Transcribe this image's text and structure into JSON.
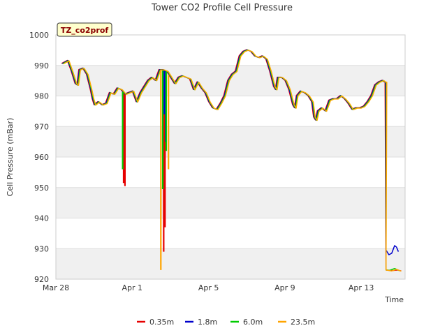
{
  "chart_data": {
    "type": "line",
    "title": "Tower CO2 Profile Cell Pressure",
    "xlabel": "Time",
    "ylabel": "Cell Pressure (mBar)",
    "site_tag": "TZ_co2prof",
    "x_unit": "days since Mar 28",
    "xlim": [
      0,
      18.3
    ],
    "ylim": [
      920,
      1000
    ],
    "yticks": [
      920,
      930,
      940,
      950,
      960,
      970,
      980,
      990,
      1000
    ],
    "xticks": [
      {
        "value": 0,
        "label": "Mar 28"
      },
      {
        "value": 4,
        "label": "Apr 1"
      },
      {
        "value": 8,
        "label": "Apr 5"
      },
      {
        "value": 12,
        "label": "Apr 9"
      },
      {
        "value": 16,
        "label": "Apr 13"
      }
    ],
    "base_profile": [
      [
        0.3,
        990.5
      ],
      [
        0.6,
        991.5
      ],
      [
        0.8,
        988
      ],
      [
        1.0,
        984
      ],
      [
        1.1,
        983.5
      ],
      [
        1.2,
        988.5
      ],
      [
        1.4,
        989
      ],
      [
        1.6,
        987
      ],
      [
        1.8,
        982
      ],
      [
        1.9,
        979
      ],
      [
        2.0,
        977
      ],
      [
        2.2,
        978
      ],
      [
        2.4,
        977
      ],
      [
        2.6,
        977.5
      ],
      [
        2.8,
        981
      ],
      [
        3.0,
        980.5
      ],
      [
        3.2,
        982.5
      ],
      [
        3.4,
        982
      ],
      [
        3.6,
        980.5
      ],
      [
        3.8,
        981
      ],
      [
        4.0,
        981.5
      ],
      [
        4.2,
        978
      ],
      [
        4.4,
        981
      ],
      [
        4.6,
        983
      ],
      [
        4.8,
        985
      ],
      [
        5.0,
        986
      ],
      [
        5.2,
        985
      ],
      [
        5.4,
        988.5
      ],
      [
        5.6,
        988.5
      ],
      [
        5.8,
        988
      ],
      [
        6.0,
        986
      ],
      [
        6.2,
        984
      ],
      [
        6.4,
        986
      ],
      [
        6.6,
        986.5
      ],
      [
        6.8,
        986
      ],
      [
        7.0,
        985.5
      ],
      [
        7.2,
        982
      ],
      [
        7.4,
        984.5
      ],
      [
        7.6,
        982.5
      ],
      [
        7.8,
        981
      ],
      [
        8.0,
        978
      ],
      [
        8.2,
        976
      ],
      [
        8.4,
        975.5
      ],
      [
        8.6,
        977.5
      ],
      [
        8.8,
        980
      ],
      [
        9.0,
        985
      ],
      [
        9.2,
        987
      ],
      [
        9.4,
        988
      ],
      [
        9.6,
        993
      ],
      [
        9.8,
        994.5
      ],
      [
        10.0,
        995
      ],
      [
        10.2,
        994.5
      ],
      [
        10.4,
        993
      ],
      [
        10.6,
        992.5
      ],
      [
        10.8,
        993
      ],
      [
        11.0,
        992
      ],
      [
        11.2,
        988
      ],
      [
        11.4,
        983
      ],
      [
        11.5,
        982
      ],
      [
        11.6,
        986
      ],
      [
        11.8,
        986
      ],
      [
        12.0,
        985
      ],
      [
        12.2,
        982
      ],
      [
        12.4,
        977
      ],
      [
        12.5,
        976
      ],
      [
        12.6,
        980
      ],
      [
        12.8,
        981.5
      ],
      [
        13.0,
        981
      ],
      [
        13.2,
        980
      ],
      [
        13.4,
        978
      ],
      [
        13.5,
        973
      ],
      [
        13.6,
        972
      ],
      [
        13.7,
        975
      ],
      [
        13.9,
        976
      ],
      [
        14.1,
        975
      ],
      [
        14.3,
        978.5
      ],
      [
        14.5,
        979
      ],
      [
        14.7,
        979
      ],
      [
        14.9,
        980
      ],
      [
        15.1,
        979
      ],
      [
        15.3,
        977.5
      ],
      [
        15.5,
        975.5
      ],
      [
        15.7,
        976
      ],
      [
        15.9,
        976
      ],
      [
        16.1,
        976.5
      ],
      [
        16.3,
        978
      ],
      [
        16.5,
        980
      ],
      [
        16.7,
        983.5
      ],
      [
        16.9,
        984.5
      ],
      [
        17.1,
        985
      ],
      [
        17.2,
        984.5
      ],
      [
        17.25,
        984.5
      ]
    ],
    "series": [
      {
        "name": "0.35m",
        "color": "#e60000",
        "x_offset": 0.0,
        "y_offset": 0.15,
        "spikes": [
          {
            "x": 3.55,
            "value": 951.5
          },
          {
            "x": 3.62,
            "value": 950.5
          },
          {
            "x": 5.65,
            "value": 929
          },
          {
            "x": 5.72,
            "value": 937
          }
        ],
        "tail": [
          [
            17.3,
            923
          ],
          [
            17.6,
            922.8
          ],
          [
            17.9,
            923
          ],
          [
            18.1,
            922.7
          ]
        ]
      },
      {
        "name": "1.8m",
        "color": "#0000cc",
        "x_offset": 0.03,
        "y_offset": 0.1,
        "spikes": [
          {
            "x": 5.68,
            "value": 974
          },
          {
            "x": 5.75,
            "value": 965
          }
        ],
        "tail": [
          [
            17.3,
            929.5
          ],
          [
            17.45,
            928
          ],
          [
            17.6,
            928.5
          ],
          [
            17.75,
            931
          ],
          [
            17.85,
            930.5
          ],
          [
            17.95,
            929
          ]
        ]
      },
      {
        "name": "6.0m",
        "color": "#00cc00",
        "x_offset": 0.06,
        "y_offset": 0.05,
        "spikes": [
          {
            "x": 3.5,
            "value": 956
          },
          {
            "x": 5.6,
            "value": 949.5
          },
          {
            "x": 5.78,
            "value": 962
          }
        ],
        "tail": [
          [
            17.3,
            923
          ],
          [
            17.5,
            922.9
          ],
          [
            17.75,
            923.5
          ],
          [
            18.0,
            922.8
          ]
        ]
      },
      {
        "name": "23.5m",
        "color": "#ffa500",
        "x_offset": 0.09,
        "y_offset": 0.0,
        "spikes": [
          {
            "x": 5.5,
            "value": 923
          },
          {
            "x": 5.9,
            "value": 956
          }
        ],
        "tail": [
          [
            17.3,
            923
          ],
          [
            17.6,
            922.7
          ],
          [
            17.85,
            923.2
          ],
          [
            18.1,
            922.6
          ]
        ]
      }
    ],
    "grid": true,
    "legend_position": "bottom-center"
  }
}
